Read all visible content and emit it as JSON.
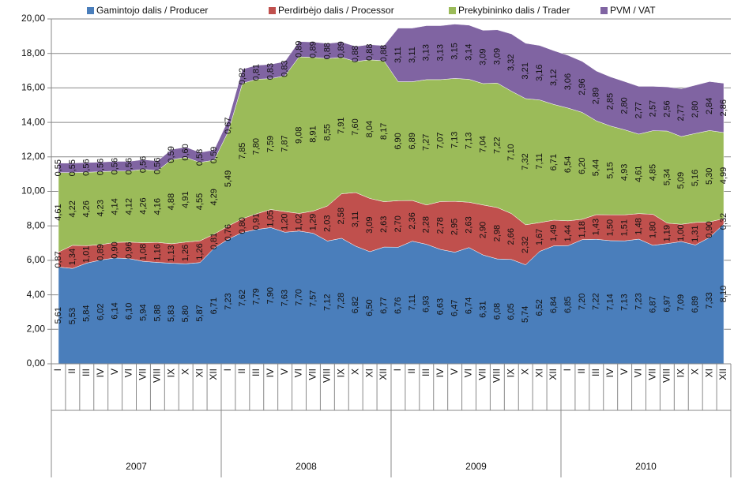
{
  "chart_data": {
    "type": "stacked_area",
    "categories": [
      "I",
      "II",
      "III",
      "IV",
      "V",
      "VI",
      "VII",
      "VIII",
      "IX",
      "X",
      "XI",
      "XII",
      "I",
      "II",
      "III",
      "IV",
      "V",
      "VI",
      "VII",
      "VIII",
      "IX",
      "X",
      "XI",
      "XII",
      "I",
      "II",
      "III",
      "IV",
      "V",
      "VI",
      "VII",
      "VIII",
      "IX",
      "X",
      "XI",
      "XII",
      "I",
      "II",
      "III",
      "IV",
      "V",
      "VI",
      "VII",
      "VIII",
      "IX",
      "X",
      "XI",
      "XII"
    ],
    "years": [
      "2007",
      "2008",
      "2009",
      "2010"
    ],
    "ylim": [
      0,
      20
    ],
    "yticks": [
      {
        "value": 0,
        "label": "0,00"
      },
      {
        "value": 2,
        "label": "2,00"
      },
      {
        "value": 4,
        "label": "4,00"
      },
      {
        "value": 6,
        "label": "6,00"
      },
      {
        "value": 8,
        "label": "8,00"
      },
      {
        "value": 10,
        "label": "10,00"
      },
      {
        "value": 12,
        "label": "12,00"
      },
      {
        "value": 14,
        "label": "14,00"
      },
      {
        "value": 16,
        "label": "16,00"
      },
      {
        "value": 18,
        "label": "18,00"
      },
      {
        "value": 20,
        "label": "20,00"
      }
    ],
    "grid": true,
    "legend": "top",
    "series": [
      {
        "name": "Gamintojo dalis / Producer",
        "color": "#4a7ebb",
        "values": [
          5.61,
          5.53,
          5.84,
          6.02,
          6.14,
          6.1,
          5.94,
          5.88,
          5.83,
          5.8,
          5.87,
          6.71,
          7.23,
          7.62,
          7.79,
          7.9,
          7.63,
          7.7,
          7.57,
          7.12,
          7.28,
          6.82,
          6.5,
          6.77,
          6.76,
          7.11,
          6.93,
          6.63,
          6.47,
          6.74,
          6.31,
          6.08,
          6.05,
          5.74,
          6.52,
          6.84,
          6.85,
          7.2,
          7.22,
          7.14,
          7.13,
          7.23,
          6.87,
          6.97,
          7.09,
          6.89,
          7.33,
          8.1
        ],
        "value_labels": [
          "5,61",
          "5,53",
          "5,84",
          "6,02",
          "6,14",
          "6,10",
          "5,94",
          "5,88",
          "5,83",
          "5,80",
          "5,87",
          "6,71",
          "7,23",
          "7,62",
          "7,79",
          "7,90",
          "7,63",
          "7,70",
          "7,57",
          "7,12",
          "7,28",
          "6,82",
          "6,50",
          "6,77",
          "6,76",
          "7,11",
          "6,93",
          "6,63",
          "6,47",
          "6,74",
          "6,31",
          "6,08",
          "6,05",
          "5,74",
          "6,52",
          "6,84",
          "6,85",
          "7,20",
          "7,22",
          "7,14",
          "7,13",
          "7,23",
          "6,87",
          "6,97",
          "7,09",
          "6,89",
          "7,33",
          "8,10"
        ]
      },
      {
        "name": "Perdirbėjo dalis / Processor",
        "color": "#c0504d",
        "values": [
          0.87,
          1.34,
          1.01,
          0.89,
          0.9,
          0.96,
          1.08,
          1.16,
          1.13,
          1.26,
          1.26,
          0.81,
          0.76,
          0.8,
          0.91,
          1.05,
          1.2,
          1.02,
          1.29,
          2.03,
          2.58,
          3.11,
          3.09,
          2.63,
          2.7,
          2.36,
          2.28,
          2.78,
          2.95,
          2.63,
          2.9,
          2.98,
          2.66,
          2.32,
          1.67,
          1.49,
          1.44,
          1.18,
          1.43,
          1.5,
          1.51,
          1.48,
          1.8,
          1.19,
          1.0,
          1.31,
          0.9,
          0.32
        ],
        "value_labels": [
          "0,87",
          "1,34",
          "1,01",
          "0,89",
          "0,90",
          "0,96",
          "1,08",
          "1,16",
          "1,13",
          "1,26",
          "1,26",
          "0,81",
          "0,76",
          "0,80",
          "0,91",
          "1,05",
          "1,20",
          "1,02",
          "1,29",
          "2,03",
          "2,58",
          "3,11",
          "3,09",
          "2,63",
          "2,70",
          "2,36",
          "2,28",
          "2,78",
          "2,95",
          "2,63",
          "2,90",
          "2,98",
          "2,66",
          "2,32",
          "1,67",
          "1,49",
          "1,44",
          "1,18",
          "1,43",
          "1,50",
          "1,51",
          "1,48",
          "1,80",
          "1,19",
          "1,00",
          "1,31",
          "0,90",
          "0,32"
        ]
      },
      {
        "name": "Prekybininko dalis / Trader",
        "color": "#9bbb59",
        "values": [
          4.61,
          4.22,
          4.26,
          4.23,
          4.14,
          4.12,
          4.26,
          4.16,
          4.88,
          4.91,
          4.55,
          4.29,
          5.49,
          7.85,
          7.8,
          7.59,
          7.87,
          9.08,
          8.91,
          8.55,
          7.91,
          7.6,
          8.04,
          8.17,
          6.9,
          6.89,
          7.27,
          7.07,
          7.13,
          7.13,
          7.04,
          7.22,
          7.1,
          7.32,
          7.11,
          6.71,
          6.54,
          6.2,
          5.44,
          5.15,
          4.93,
          4.61,
          4.85,
          5.34,
          5.09,
          5.16,
          5.3,
          4.99
        ],
        "value_labels": [
          "4,61",
          "4,22",
          "4,26",
          "4,23",
          "4,14",
          "4,12",
          "4,26",
          "4,16",
          "4,88",
          "4,91",
          "4,55",
          "4,29",
          "5,49",
          "7,85",
          "7,80",
          "7,59",
          "7,87",
          "9,08",
          "8,91",
          "8,55",
          "7,91",
          "7,60",
          "8,04",
          "8,17",
          "6,90",
          "6,89",
          "7,27",
          "7,07",
          "7,13",
          "7,13",
          "7,04",
          "7,22",
          "7,10",
          "7,32",
          "7,11",
          "6,71",
          "6,54",
          "6,20",
          "5,44",
          "5,15",
          "4,93",
          "4,61",
          "4,85",
          "5,34",
          "5,09",
          "5,16",
          "5,30",
          "4,99"
        ]
      },
      {
        "name": "PVM / VAT",
        "color": "#8064a2",
        "values": [
          0.55,
          0.55,
          0.56,
          0.56,
          0.56,
          0.56,
          0.56,
          0.56,
          0.59,
          0.6,
          0.58,
          0.59,
          0.67,
          0.82,
          0.81,
          0.83,
          0.83,
          0.89,
          0.89,
          0.88,
          0.89,
          0.88,
          0.88,
          0.88,
          3.11,
          3.11,
          3.13,
          3.13,
          3.15,
          3.14,
          3.09,
          3.09,
          3.32,
          3.21,
          3.16,
          3.12,
          3.06,
          2.96,
          2.89,
          2.85,
          2.8,
          2.77,
          2.57,
          2.56,
          2.77,
          2.8,
          2.84,
          2.86
        ],
        "value_labels": [
          "0,55",
          "0,55",
          "0,56",
          "0,56",
          "0,56",
          "0,56",
          "0,56",
          "0,56",
          "0,59",
          "0,60",
          "0,58",
          "0,59",
          "0,67",
          "0,82",
          "0,81",
          "0,83",
          "0,83",
          "0,89",
          "0,89",
          "0,88",
          "0,89",
          "0,88",
          "0,88",
          "0,88",
          "3,11",
          "3,11",
          "3,13",
          "3,13",
          "3,15",
          "3,14",
          "3,09",
          "3,09",
          "3,32",
          "3,21",
          "3,16",
          "3,12",
          "3,06",
          "2,96",
          "2,89",
          "2,85",
          "2,80",
          "2,77",
          "2,57",
          "2,56",
          "2,77",
          "2,80",
          "2,84",
          "2,86"
        ]
      }
    ]
  }
}
